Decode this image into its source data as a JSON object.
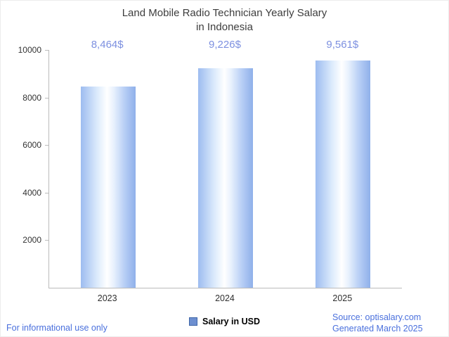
{
  "chart_data": {
    "type": "bar",
    "title_line1": "Land Mobile Radio Technician Yearly Salary",
    "title_line2": "in Indonesia",
    "categories": [
      "2023",
      "2024",
      "2025"
    ],
    "values": [
      8464,
      9226,
      9561
    ],
    "value_labels": [
      "8,464$",
      "9,226$",
      "9,561$"
    ],
    "yticks": [
      2000,
      4000,
      6000,
      8000,
      10000
    ],
    "ylim": [
      0,
      10000
    ],
    "xlabel": "",
    "ylabel": "",
    "grid": false,
    "legend": [
      {
        "label": "Salary in USD",
        "color": "#6d8fd0"
      }
    ],
    "legend_position": "bottom",
    "colors": {
      "bar_edge": "#8fb0ea",
      "bar_center": "#ffffff",
      "value_label": "#7d90e0",
      "axis": "#bbbbbb",
      "title": "#3d3d3d",
      "footer_text": "#4a70dd"
    }
  },
  "footer": {
    "disclaimer": "For informational use only",
    "source": "Source: optisalary.com",
    "generated": "Generated March 2025"
  }
}
